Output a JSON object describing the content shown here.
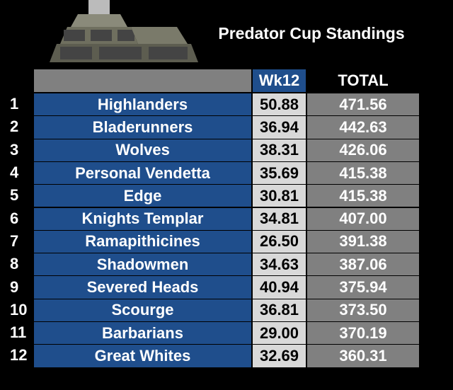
{
  "header": {
    "title": "Predator Cup Standings"
  },
  "table": {
    "columns": [
      "Wk12",
      "TOTAL"
    ],
    "rows": [
      [
        "1",
        "Highlanders",
        "50.88",
        "471.56"
      ],
      [
        "2",
        "Bladerunners",
        "36.94",
        "442.63"
      ],
      [
        "3",
        "Wolves",
        "38.31",
        "426.06"
      ],
      [
        "4",
        "Personal Vendetta",
        "35.69",
        "415.38"
      ],
      [
        "5",
        "Edge",
        "30.81",
        "415.38"
      ],
      [
        "6",
        "Knights Templar",
        "34.81",
        "407.00"
      ],
      [
        "7",
        "Ramapithicines",
        "26.50",
        "391.38"
      ],
      [
        "8",
        "Shadowmen",
        "34.63",
        "387.06"
      ],
      [
        "9",
        "Severed Heads",
        "40.94",
        "375.94"
      ],
      [
        "10",
        "Scourge",
        "36.81",
        "373.50"
      ],
      [
        "11",
        "Barbarians",
        "29.00",
        "370.19"
      ],
      [
        "12",
        "Great Whites",
        "32.69",
        "360.31"
      ]
    ]
  }
}
